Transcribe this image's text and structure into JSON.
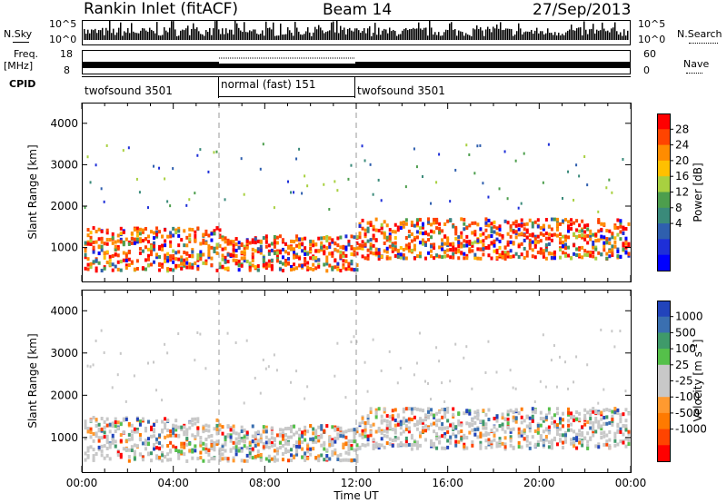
{
  "header": {
    "station": "Rankin Inlet (fitACF)",
    "beam": "Beam 14",
    "date": "27/Sep/2013"
  },
  "top_panels": {
    "nsky_label": "N.Sky",
    "nsearch_label": "N.Search",
    "nsky_ticks": [
      "10^5",
      "10^0"
    ],
    "nsearch_ticks": [
      "10^5",
      "10^0"
    ],
    "freq_label": [
      "Freq.",
      "[MHz]"
    ],
    "freq_ticks": [
      "18",
      "8"
    ],
    "nave_label": "Nave",
    "nave_ticks": [
      "60",
      "0"
    ],
    "cpid_label": "CPID",
    "cpid_segments": [
      {
        "label": "twofsound 3501",
        "start_hour": 0,
        "end_hour": 6
      },
      {
        "label": "normal (fast) 151",
        "start_hour": 6,
        "end_hour": 12
      },
      {
        "label": "twofsound 3501",
        "start_hour": 12,
        "end_hour": 24
      }
    ]
  },
  "chart_data": [
    {
      "type": "heatmap",
      "title": "",
      "quantity": "Power",
      "ylabel": "Slant Range [km]",
      "colorbar_label": "Power [dB]",
      "ylim": [
        180,
        4500
      ],
      "y_ticks": [
        1000,
        2000,
        3000,
        4000
      ],
      "xlim": [
        0,
        24
      ],
      "colorbar_ticks": [
        "28",
        "24",
        "20",
        "16",
        "12",
        "8",
        "4"
      ],
      "colorbar_colors": [
        "#ff0000",
        "#ff4400",
        "#ff8c00",
        "#ffc000",
        "#a8d040",
        "#4d9e4d",
        "#3a8a7a",
        "#2f5fae",
        "#1e2fd8",
        "#0000ff"
      ],
      "bands": [
        {
          "hours": [
            0,
            6
          ],
          "range_km": [
            600,
            1500
          ],
          "level": "high"
        },
        {
          "hours": [
            6,
            12
          ],
          "range_km": [
            700,
            1300
          ],
          "level": "high"
        },
        {
          "hours": [
            12,
            24
          ],
          "range_km": [
            900,
            1600
          ],
          "level": "high"
        }
      ]
    },
    {
      "type": "heatmap",
      "title": "",
      "quantity": "Velocity",
      "ylabel": "Slant Range [km]",
      "colorbar_label": "Velocity [m s^-1]",
      "ylim": [
        180,
        4500
      ],
      "y_ticks": [
        1000,
        2000,
        3000,
        4000
      ],
      "xlim": [
        0,
        24
      ],
      "colorbar_ticks": [
        "1000",
        "500",
        "100",
        "25",
        "-25",
        "-100",
        "-500",
        "-1000"
      ],
      "colorbar_colors": [
        "#2244bb",
        "#3a6fb0",
        "#3f9a6a",
        "#55c04a",
        "#c8c8c8",
        "#c8c8c8",
        "#ff9a30",
        "#ff7a00",
        "#ff4400",
        "#ff0000"
      ]
    }
  ],
  "x_axis": {
    "ticks": [
      "00:00",
      "04:00",
      "08:00",
      "12:00",
      "16:00",
      "20:00",
      "00:00"
    ],
    "label": "Time UT"
  },
  "superscript": "-1"
}
